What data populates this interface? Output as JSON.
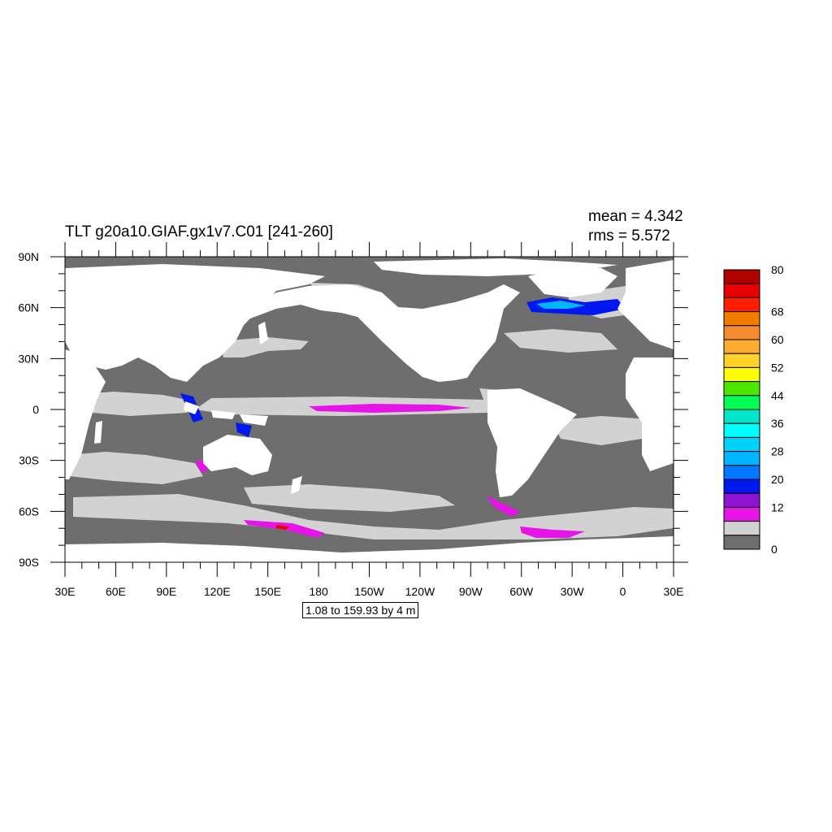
{
  "title": "TLT g20a10.GIAF.gx1v7.C01 [241-260]",
  "stats": {
    "mean": "mean = 4.342",
    "rms": "rms = 5.572"
  },
  "info_box": "1.08 to 159.93 by 4 m",
  "lat_labels": [
    "90N",
    "60N",
    "30N",
    "0",
    "30S",
    "60S",
    "90S"
  ],
  "lon_labels": [
    "30E",
    "60E",
    "90E",
    "120E",
    "150E",
    "180",
    "150W",
    "120W",
    "90W",
    "60W",
    "30W",
    "0",
    "30E"
  ],
  "colors": {
    "land": "#ffffff",
    "ocean_deep": "#6e6e6e",
    "ocean_light": "#d2d2d2"
  },
  "colorbar": {
    "bins": [
      "#b00000",
      "#e60000",
      "#ff1e00",
      "#f07c00",
      "#f58b2f",
      "#ffab32",
      "#ffd22d",
      "#ffff00",
      "#4de600",
      "#00ff50",
      "#00e6c8",
      "#00ffff",
      "#00d2ff",
      "#00b4ff",
      "#0078ff",
      "#0018f0",
      "#8e14d2",
      "#e614e6",
      "#d2d2d2",
      "#6e6e6e"
    ],
    "labels": [
      {
        "text": "80",
        "bin": 0
      },
      {
        "text": "68",
        "bin": 3
      },
      {
        "text": "60",
        "bin": 5
      },
      {
        "text": "52",
        "bin": 7
      },
      {
        "text": "44",
        "bin": 9
      },
      {
        "text": "36",
        "bin": 11
      },
      {
        "text": "28",
        "bin": 13
      },
      {
        "text": "20",
        "bin": 15
      },
      {
        "text": "12",
        "bin": 17
      },
      {
        "text": "0",
        "bin": 20
      }
    ]
  }
}
